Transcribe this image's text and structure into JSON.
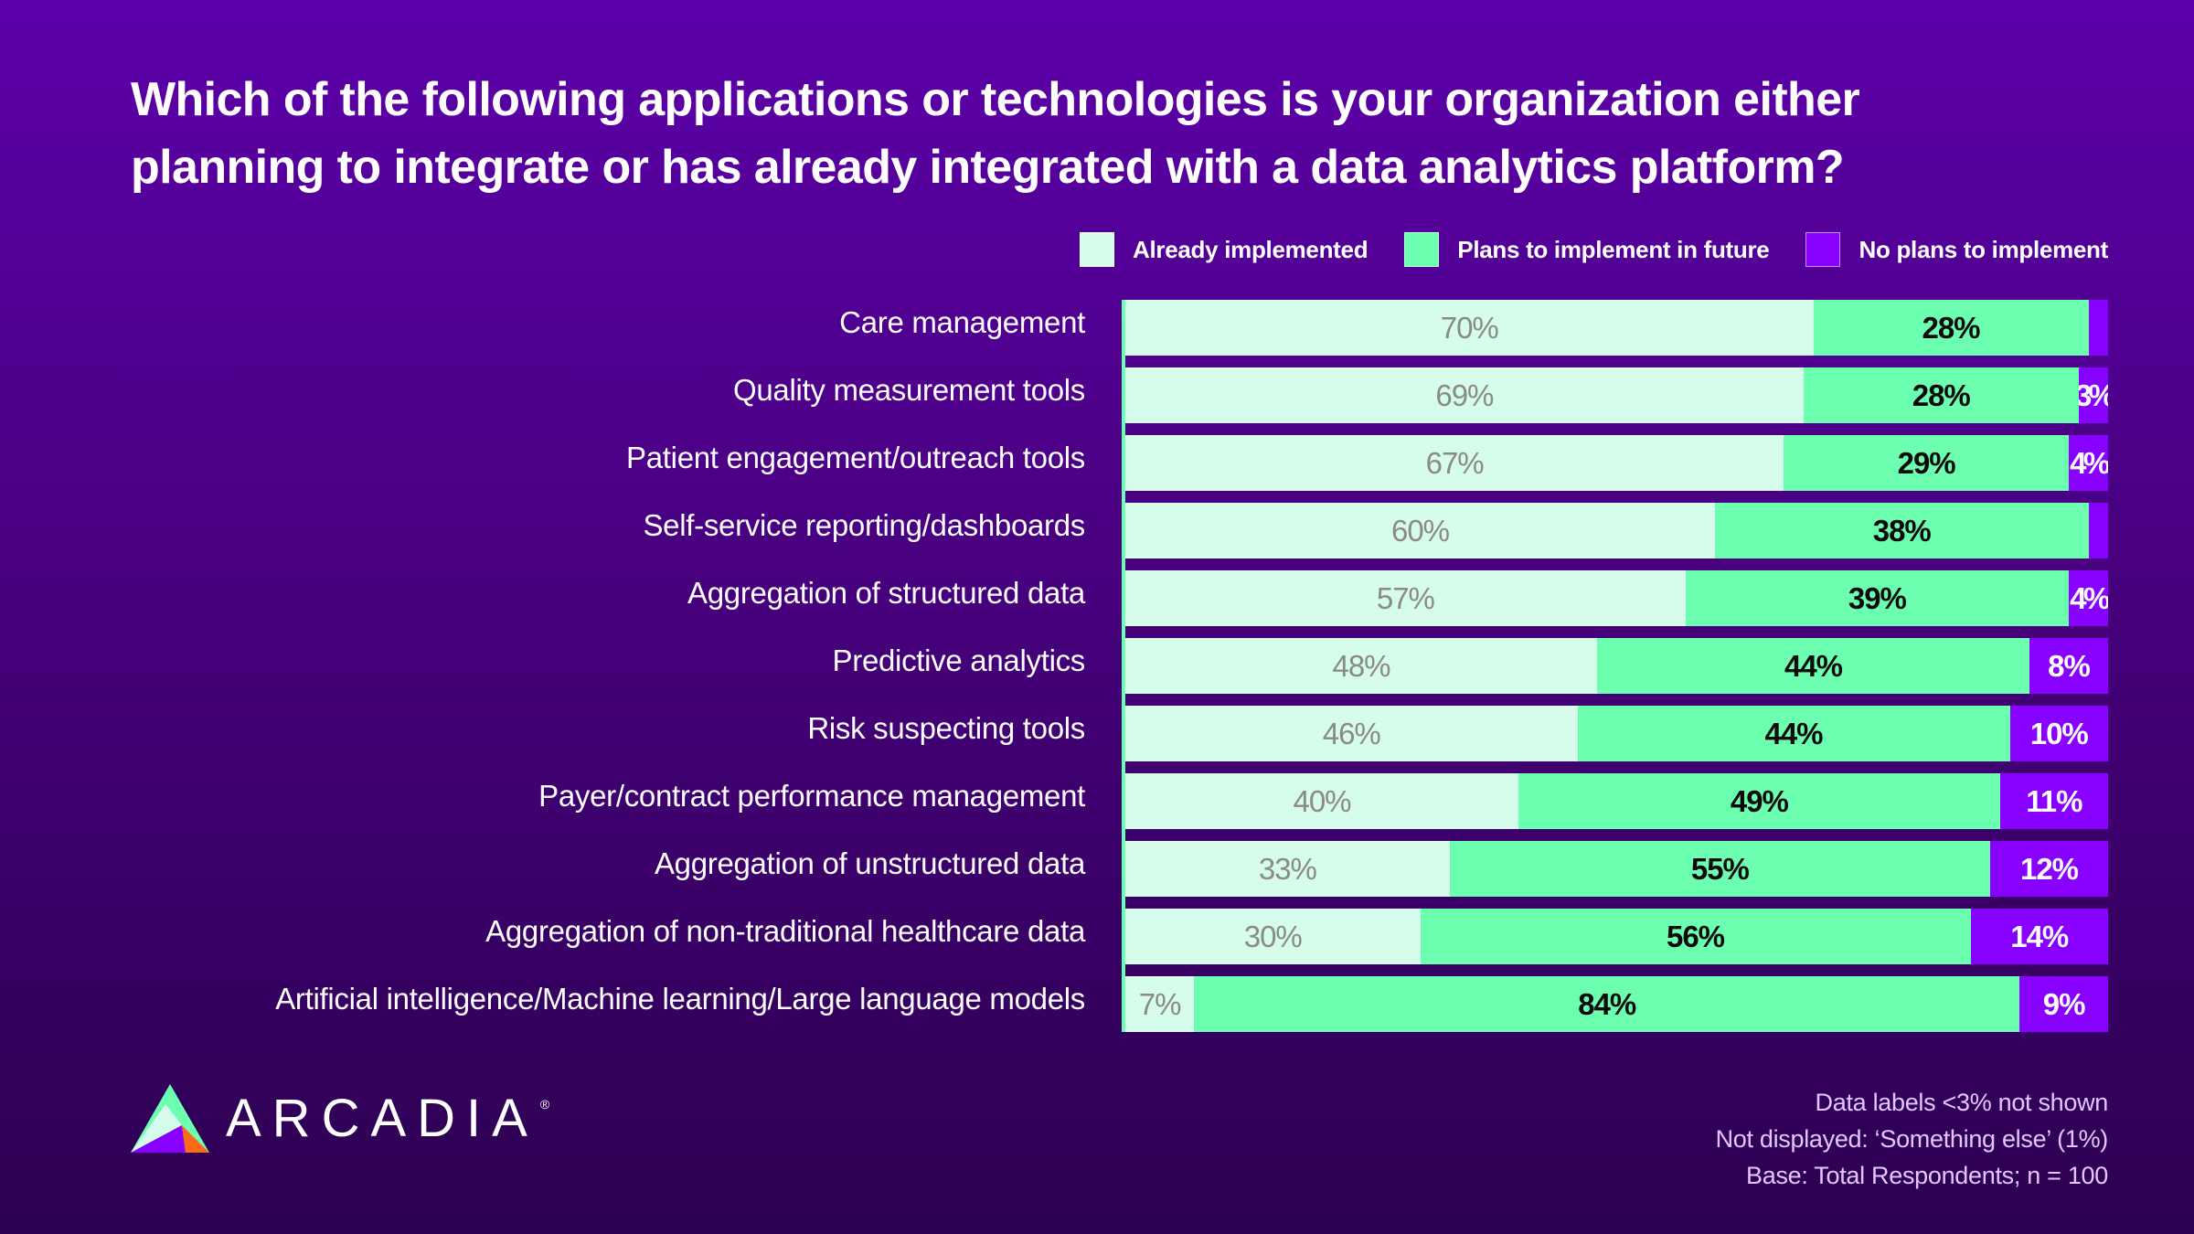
{
  "chart_data": {
    "type": "bar",
    "orientation": "horizontal",
    "stacked": true,
    "title": "Which of the following applications or technologies is your organization either planning to integrate or has already integrated with a data analytics platform?",
    "xlabel": "",
    "ylabel": "",
    "value_suffix": "%",
    "legend_position": "top-right",
    "grid": false,
    "categories": [
      "Care management",
      "Quality measurement tools",
      "Patient engagement/outreach tools",
      "Self-service reporting/dashboards",
      "Aggregation of structured data",
      "Predictive analytics",
      "Risk suspecting tools",
      "Payer/contract performance management",
      "Aggregation of unstructured data",
      "Aggregation of non-traditional healthcare data",
      "Artificial intelligence/Machine learning/Large language models"
    ],
    "series": [
      {
        "name": "Already implemented",
        "color": "#d6fdeb",
        "values": [
          70,
          69,
          67,
          60,
          57,
          48,
          46,
          40,
          33,
          30,
          7
        ]
      },
      {
        "name": "Plans to implement in future",
        "color": "#6cffb0",
        "values": [
          28,
          28,
          29,
          38,
          39,
          44,
          44,
          49,
          55,
          56,
          84
        ]
      },
      {
        "name": "No plans to implement",
        "color": "#8800ff",
        "values": [
          2,
          3,
          4,
          2,
          4,
          8,
          10,
          11,
          12,
          14,
          9
        ]
      }
    ],
    "label_threshold": 3,
    "title_lines": [
      "Which of the following applications or technologies is your organization either",
      "planning to integrate or has already integrated with a data analytics platform?"
    ]
  },
  "footnotes": [
    "Data labels <3% not shown",
    "Not displayed: ‘Something else’ (1%)",
    "Base: Total Respondents; n = 100"
  ],
  "brand": {
    "name": "ARCADIA",
    "registered": "®",
    "colors": {
      "teal": "#6cffb0",
      "mint": "#d6fdeb",
      "purple": "#8800ff",
      "orange": "#ff6a1a"
    }
  },
  "theme": {
    "background_top": "#5c00aa",
    "background_bottom": "#2c0050"
  }
}
